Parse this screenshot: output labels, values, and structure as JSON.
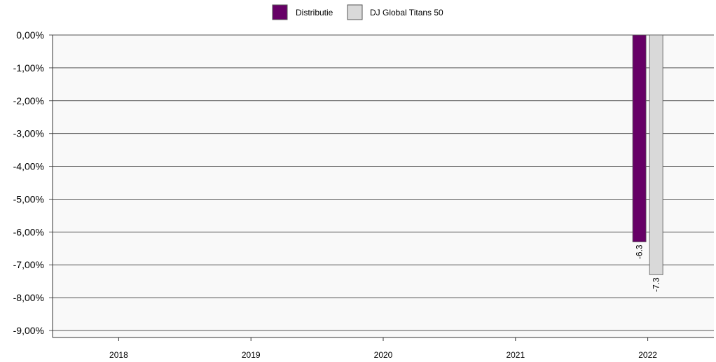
{
  "chart_data": {
    "type": "bar",
    "categories": [
      "2018",
      "2019",
      "2020",
      "2021",
      "2022"
    ],
    "series": [
      {
        "name": "Distributie",
        "values": [
          null,
          null,
          null,
          null,
          -6.3
        ],
        "color": "#660066"
      },
      {
        "name": "DJ Global Titans 50",
        "values": [
          null,
          null,
          null,
          null,
          -7.3
        ],
        "color": "#d9d9d9"
      }
    ],
    "data_labels": [
      null,
      null,
      null,
      null,
      [
        "-6.3",
        "-7.3"
      ]
    ],
    "ylim": [
      -9,
      0
    ],
    "yticks": [
      0,
      -1,
      -2,
      -3,
      -4,
      -5,
      -6,
      -7,
      -8,
      -9
    ],
    "ytick_labels": [
      "0,00%",
      "-1,00%",
      "-2,00%",
      "-3,00%",
      "-4,00%",
      "-5,00%",
      "-6,00%",
      "-7,00%",
      "-8,00%",
      "-9,00%"
    ],
    "grid": true,
    "legend_position": "top-center",
    "plot_background": "#f9f9f9"
  }
}
